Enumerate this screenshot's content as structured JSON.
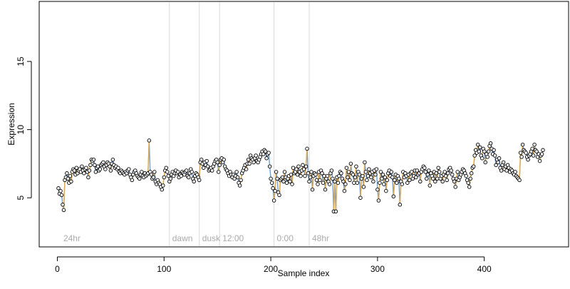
{
  "chart_data": {
    "type": "scatter",
    "xlabel": "Sample index",
    "ylabel": "Expression",
    "xlim": [
      -17,
      479
    ],
    "ylim": [
      1.4,
      19.4
    ],
    "x_ticks": [
      0,
      100,
      200,
      300,
      400
    ],
    "y_ticks": [
      5,
      10,
      15
    ],
    "grid": false,
    "annotations": [
      {
        "label": "24hr",
        "x": 3
      },
      {
        "label": "dawn",
        "x": 105
      },
      {
        "label": "dusk",
        "x": 133
      },
      {
        "label": "12:00",
        "x": 152
      },
      {
        "label": "0:00",
        "x": 203
      },
      {
        "label": "48hr",
        "x": 236
      }
    ],
    "segment_lines_x": [
      105,
      133,
      152,
      203,
      236
    ],
    "baseline_color": "#6f9fd8",
    "highlight_color": "#f5a623",
    "series": [
      {
        "x0": 1,
        "dx": 1,
        "values": [
          5.7,
          5.3,
          5.5,
          5.2,
          4.5,
          4.1,
          6.3,
          6.5,
          6.8,
          6.4,
          6.1,
          6.6,
          6.2,
          6.9,
          7.1,
          7.0,
          6.7,
          7.2,
          6.8,
          7.0,
          7.1,
          6.9,
          7.3,
          7.0,
          6.8,
          7.1,
          7.2,
          6.9,
          6.5,
          7.0,
          7.4,
          7.8,
          7.7,
          7.8,
          7.4,
          6.9,
          7.2,
          7.3,
          7.0,
          7.1,
          7.4,
          7.5,
          7.6,
          7.3,
          7.1,
          7.4,
          7.6,
          7.5,
          7.3,
          7.0,
          7.5,
          7.8,
          7.4,
          7.2,
          7.3,
          7.1,
          7.2,
          6.9,
          6.8,
          7.0,
          6.9,
          6.8,
          6.7,
          6.9,
          6.8,
          7.0,
          7.1,
          6.7,
          6.5,
          6.3,
          6.7,
          6.9,
          7.0,
          6.8,
          6.6,
          6.5,
          6.4,
          6.7,
          6.9,
          6.6,
          6.5,
          6.8,
          6.6,
          6.7,
          6.8,
          9.2,
          6.9,
          6.7,
          6.4,
          6.5,
          6.9,
          6.2,
          6.0,
          6.3,
          6.1,
          6.0,
          5.8,
          5.6,
          5.9,
          6.5,
          7.0,
          7.2,
          6.9,
          6.6,
          6.2,
          6.4,
          6.7,
          6.9,
          6.6,
          6.8,
          7.0,
          6.8,
          6.9,
          6.5,
          6.7,
          6.6,
          6.9,
          6.8,
          6.7,
          6.9,
          7.0,
          6.6,
          6.5,
          6.8,
          7.1,
          6.9,
          6.4,
          6.2,
          6.6,
          6.8,
          6.7,
          6.5,
          6.3,
          7.6,
          7.8,
          7.5,
          7.2,
          7.6,
          7.4,
          7.7,
          7.3,
          7.0,
          7.1,
          7.2,
          7.0,
          7.3,
          7.5,
          7.7,
          7.8,
          7.6,
          6.9,
          7.4,
          7.8,
          7.9,
          7.6,
          7.8,
          7.3,
          7.1,
          7.0,
          6.8,
          6.6,
          6.9,
          6.7,
          6.5,
          6.7,
          6.4,
          6.6,
          6.9,
          6.5,
          6.1,
          5.9,
          6.3,
          6.8,
          7.0,
          7.2,
          7.4,
          7.1,
          7.5,
          7.8,
          7.5,
          8.1,
          7.9,
          7.8,
          7.6,
          7.9,
          8.1,
          7.7,
          7.6,
          7.8,
          8.0,
          8.2,
          8.4,
          8.2,
          8.5,
          8.4,
          7.9,
          8.2,
          8.3,
          7.3,
          6.4,
          6.1,
          5.7,
          4.8,
          5.5,
          6.9,
          6.4,
          5.4,
          5.2,
          6.3,
          6.4,
          6.5,
          6.2,
          6.9,
          6.5,
          6.1,
          6.4,
          6.6,
          6.2,
          6.7,
          6.0,
          7.2,
          6.8,
          6.9,
          7.1,
          6.7,
          7.3,
          6.9,
          6.6,
          7.0,
          7.4,
          7.1,
          6.6,
          7.3,
          8.6,
          6.8,
          6.2,
          6.5,
          6.9,
          5.6,
          6.6,
          6.8,
          6.7,
          6.3,
          6.0,
          6.9,
          6.3,
          7.0,
          6.8,
          6.1,
          6.6,
          5.6,
          6.4,
          6.6,
          6.2,
          6.0,
          6.8,
          7.0,
          6.4,
          4.0,
          6.2,
          4.0,
          6.5,
          6.1,
          6.6,
          6.9,
          6.8,
          6.4,
          6.2,
          5.5,
          6.0,
          7.2,
          6.5,
          6.9,
          6.3,
          7.5,
          6.8,
          6.7,
          6.1,
          6.5,
          7.3,
          6.1,
          6.9,
          6.7,
          5.0,
          6.4,
          6.6,
          5.8,
          7.6,
          6.9,
          6.3,
          6.6,
          7.1,
          6.8,
          6.5,
          6.9,
          6.2,
          7.0,
          6.7,
          7.1,
          5.6,
          4.8,
          6.1,
          6.9,
          6.4,
          6.7,
          6.0,
          6.5,
          5.5,
          6.3,
          6.8,
          7.0,
          6.6,
          6.9,
          6.5,
          5.1,
          6.3,
          6.7,
          6.1,
          6.6,
          6.4,
          4.5,
          6.2,
          6.0,
          6.9,
          6.5,
          6.8,
          6.6,
          6.1,
          6.7,
          6.3,
          6.8,
          6.9,
          6.4,
          6.6,
          7.0,
          6.5,
          7.0,
          6.7,
          6.8,
          6.2,
          6.9,
          7.1,
          7.3,
          7.2,
          6.9,
          6.4,
          6.7,
          7.0,
          5.9,
          6.8,
          6.6,
          6.4,
          6.9,
          6.2,
          6.8,
          6.4,
          7.2,
          6.9,
          6.4,
          6.6,
          6.2,
          6.7,
          6.9,
          6.6,
          6.3,
          6.8,
          7.1,
          7.2,
          7.0,
          6.7,
          6.4,
          6.2,
          5.8,
          6.4,
          6.9,
          6.3,
          6.5,
          6.7,
          6.9,
          7.1,
          7.0,
          6.8,
          6.6,
          6.3,
          6.1,
          5.8,
          6.4,
          6.8,
          7.2,
          7.3,
          8.1,
          8.5,
          8.3,
          8.9,
          8.4,
          8.7,
          8.1,
          7.9,
          8.6,
          8.4,
          7.6,
          8.2,
          8.0,
          8.4,
          8.8,
          9.0,
          8.6,
          8.2,
          8.5,
          8.1,
          7.4,
          7.8,
          7.6,
          7.9,
          7.2,
          7.0,
          7.4,
          7.6,
          7.1,
          7.3,
          7.0,
          7.4,
          7.2,
          6.9,
          7.1,
          7.0,
          6.8,
          6.7,
          6.9,
          6.6,
          6.5,
          6.4,
          6.3,
          8.3,
          8.0,
          8.9,
          8.5,
          8.4,
          8.3,
          8.0,
          7.8,
          8.1,
          8.2,
          8.4,
          8.6,
          8.1,
          8.9,
          8.5,
          8.4,
          8.0,
          8.2,
          7.7,
          8.1,
          8.2,
          8.5
        ]
      }
    ]
  }
}
